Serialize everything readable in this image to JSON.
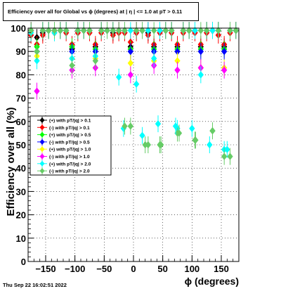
{
  "title": "Efficiency over all for Global vs ϕ (degrees) at |  η | <= 1.0 at pT > 0.11",
  "timestamp": "Thu Sep 22 16:02:51 2022",
  "chart_data": {
    "type": "scatter",
    "title": "Efficiency over all for Global vs ϕ (degrees) at |  η | <= 1.0 at pT > 0.11",
    "xlabel": "ϕ (degrees)",
    "ylabel": "Efficiency over all (%)",
    "xlim": [
      -180,
      180
    ],
    "ylim": [
      0,
      100
    ],
    "x_ticks": [
      -150,
      -100,
      -50,
      0,
      50,
      100,
      150
    ],
    "x_tick_labels": [
      "−150",
      "−100",
      "−50",
      "0",
      "50",
      "100",
      "150"
    ],
    "y_ticks": [
      0,
      10,
      20,
      30,
      40,
      50,
      60,
      70,
      80,
      90,
      100
    ],
    "grid": true,
    "legend_position": "middle-left",
    "series": [
      {
        "name": "(+) with pT/|q| > 0.1",
        "color": "#000000",
        "x": [
          -175,
          -165,
          -155,
          -145,
          -135,
          -125,
          -115,
          -105,
          -95,
          -85,
          -75,
          -65,
          -55,
          -45,
          -35,
          -25,
          -15,
          -5,
          5,
          15,
          25,
          35,
          45,
          55,
          65,
          75,
          85,
          95,
          105,
          115,
          125,
          135,
          145,
          155,
          165,
          175
        ],
        "y": [
          99,
          96,
          98,
          99,
          99,
          99,
          99,
          91,
          99,
          99,
          99,
          92,
          99,
          99,
          98,
          99,
          99,
          92,
          99,
          99,
          98,
          92,
          99,
          99,
          99,
          92,
          99,
          99,
          99,
          92,
          99,
          99,
          99,
          92,
          99,
          99
        ]
      },
      {
        "name": "(-) with pT/|q| > 0.1",
        "color": "#ff0000",
        "x": [
          -175,
          -165,
          -155,
          -145,
          -135,
          -125,
          -115,
          -105,
          -95,
          -85,
          -75,
          -65,
          -55,
          -45,
          -35,
          -25,
          -15,
          -5,
          5,
          15,
          25,
          35,
          45,
          55,
          65,
          75,
          85,
          95,
          105,
          115,
          125,
          135,
          145,
          155,
          165,
          175
        ],
        "y": [
          97,
          93,
          97,
          99,
          98,
          99,
          98,
          93,
          98,
          99,
          98,
          93,
          98,
          99,
          97,
          98,
          98,
          94,
          98,
          99,
          97,
          93,
          98,
          99,
          98,
          93,
          98,
          99,
          98,
          93,
          98,
          99,
          97,
          93,
          98,
          99
        ]
      },
      {
        "name": "(+) with pT/|q| > 0.5",
        "color": "#00ff00",
        "x": [
          -175,
          -165,
          -155,
          -145,
          -135,
          -125,
          -115,
          -105,
          -95,
          -85,
          -75,
          -65,
          -55,
          -45,
          -35,
          -25,
          -15,
          -5,
          5,
          15,
          25,
          35,
          45,
          55,
          65,
          75,
          85,
          95,
          105,
          115,
          125,
          135,
          145,
          155,
          165,
          175
        ],
        "y": [
          99,
          92,
          99,
          99,
          99,
          99,
          99,
          92,
          99,
          99,
          99,
          91,
          99,
          99,
          99,
          99,
          99,
          91,
          99,
          99,
          99,
          91,
          99,
          99,
          99,
          91,
          99,
          99,
          99,
          91,
          99,
          99,
          99,
          91,
          99,
          99
        ]
      },
      {
        "name": "(-) with pT/|q| > 0.5",
        "color": "#0000ff",
        "x": [
          -175,
          -165,
          -155,
          -145,
          -135,
          -125,
          -115,
          -105,
          -95,
          -85,
          -75,
          -65,
          -55,
          -45,
          -35,
          -25,
          -15,
          -5,
          5,
          15,
          25,
          35,
          45,
          55,
          65,
          75,
          85,
          95,
          105,
          115,
          125,
          135,
          145,
          155,
          165,
          175
        ],
        "y": [
          99,
          90,
          99,
          99,
          99,
          99,
          99,
          90,
          99,
          99,
          99,
          90,
          99,
          99,
          99,
          99,
          99,
          90,
          99,
          99,
          99,
          90,
          99,
          99,
          99,
          90,
          99,
          99,
          99,
          90,
          99,
          99,
          99,
          90,
          99,
          99
        ]
      },
      {
        "name": "(+) with pT/|q| > 1.0",
        "color": "#ffff00",
        "x": [
          -175,
          -165,
          -155,
          -145,
          -135,
          -125,
          -115,
          -105,
          -95,
          -85,
          -75,
          -65,
          -55,
          -45,
          -35,
          -25,
          -15,
          -5,
          5,
          15,
          25,
          35,
          45,
          55,
          65,
          75,
          85,
          95,
          105,
          115,
          125,
          135,
          145,
          155,
          165,
          175
        ],
        "y": [
          99,
          88,
          99,
          99,
          99,
          99,
          99,
          87,
          99,
          99,
          99,
          87,
          99,
          99,
          99,
          99,
          99,
          85,
          99,
          99,
          99,
          86,
          99,
          99,
          99,
          86,
          99,
          99,
          99,
          83,
          99,
          99,
          99,
          83,
          99,
          99
        ]
      },
      {
        "name": "(-) with pT/|q| > 1.0",
        "color": "#ff00ff",
        "x": [
          -175,
          -165,
          -155,
          -145,
          -135,
          -125,
          -115,
          -105,
          -95,
          -85,
          -75,
          -65,
          -55,
          -45,
          -35,
          -25,
          -15,
          -5,
          5,
          15,
          25,
          35,
          45,
          55,
          65,
          75,
          85,
          95,
          105,
          115,
          125,
          135,
          145,
          155,
          165,
          175
        ],
        "y": [
          99,
          73,
          99,
          99,
          99,
          99,
          99,
          82,
          99,
          99,
          99,
          83,
          99,
          99,
          99,
          99,
          99,
          80,
          99,
          99,
          99,
          84,
          99,
          99,
          99,
          82,
          99,
          99,
          99,
          83,
          99,
          99,
          99,
          82,
          99,
          99
        ]
      },
      {
        "name": "(+) with pT/|q| > 2.0",
        "color": "#00ffff",
        "x": [
          -175,
          -165,
          -155,
          -145,
          -135,
          -125,
          -115,
          -105,
          -95,
          -85,
          -75,
          -65,
          -55,
          -45,
          -35,
          -25,
          -15,
          -5,
          5,
          15,
          25,
          35,
          45,
          55,
          65,
          75,
          85,
          95,
          105,
          115,
          125,
          135,
          145,
          155,
          165,
          175
        ],
        "y": [
          98,
          86,
          99,
          99,
          98,
          99,
          99,
          87,
          99,
          99,
          99,
          88,
          99,
          99,
          99,
          79,
          99,
          99,
          76,
          99,
          99,
          87,
          99,
          99,
          99,
          57,
          99,
          99,
          99,
          80,
          99,
          99,
          99,
          48,
          99,
          99
        ]
      },
      {
        "name": "(-) with pT/|q| > 2.0",
        "color": "#66cc66",
        "x": [
          -175,
          -165,
          -155,
          -145,
          -135,
          -125,
          -115,
          -105,
          -95,
          -85,
          -75,
          -65,
          -55,
          -45,
          -35,
          -25,
          -15,
          -5,
          5,
          15,
          25,
          35,
          45,
          55,
          65,
          75,
          85,
          95,
          105,
          115,
          125,
          135,
          145,
          155,
          165,
          175
        ],
        "y": [
          99,
          90,
          99,
          99,
          99,
          99,
          99,
          84,
          99,
          99,
          99,
          86,
          99,
          99,
          99,
          99,
          99,
          58,
          99,
          99,
          50,
          99,
          50,
          99,
          99,
          55,
          99,
          99,
          52,
          99,
          99,
          56,
          99,
          45,
          99,
          99
        ]
      }
    ],
    "x_offsets_visual": [],
    "scattered_points": [
      {
        "series": 6,
        "x": -17,
        "y": 57
      },
      {
        "series": 7,
        "x": -15,
        "y": 58
      },
      {
        "series": 6,
        "x": 15,
        "y": 54
      },
      {
        "series": 7,
        "x": 20,
        "y": 50
      },
      {
        "series": 6,
        "x": 42,
        "y": 59
      },
      {
        "series": 7,
        "x": 47,
        "y": 50
      },
      {
        "series": 6,
        "x": 72,
        "y": 58
      },
      {
        "series": 7,
        "x": 78,
        "y": 55
      },
      {
        "series": 6,
        "x": 100,
        "y": 57
      },
      {
        "series": 7,
        "x": 106,
        "y": 52
      },
      {
        "series": 6,
        "x": 130,
        "y": 50
      },
      {
        "series": 7,
        "x": 135,
        "y": 56
      },
      {
        "series": 6,
        "x": 160,
        "y": 48
      },
      {
        "series": 7,
        "x": 165,
        "y": 45
      }
    ]
  }
}
